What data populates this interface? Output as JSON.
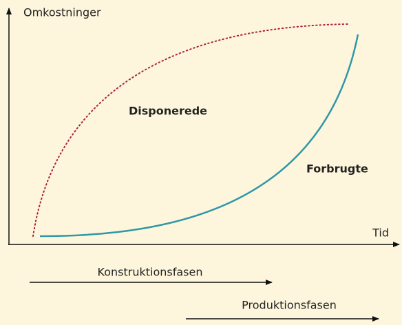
{
  "axes": {
    "y_label": "Omkostninger",
    "x_label": "Tid"
  },
  "curves": [
    {
      "label": "Disponerede"
    },
    {
      "label": "Forbrugte"
    }
  ],
  "phases": [
    {
      "label": "Konstruktionsfasen"
    },
    {
      "label": "Produktionsfasen"
    }
  ]
}
